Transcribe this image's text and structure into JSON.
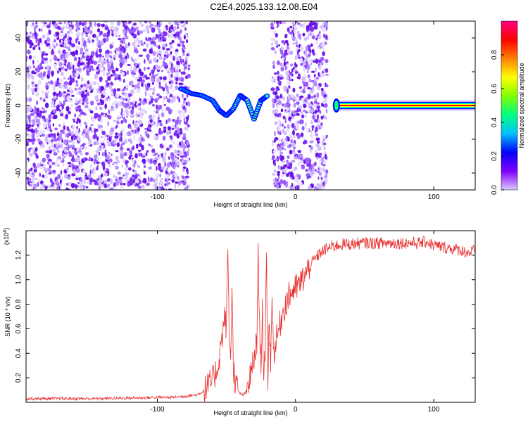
{
  "title": "C2E4.2025.133.12.08.E04",
  "chart_data": [
    {
      "type": "heatmap",
      "name": "spectrogram",
      "xlabel": "Height of straight line (km)",
      "ylabel": "Frequency (Hz)",
      "xlim": [
        -195,
        130
      ],
      "ylim": [
        -50,
        50
      ],
      "xticks": [
        -100,
        0,
        100
      ],
      "yticks": [
        -40,
        -20,
        0,
        20,
        40
      ],
      "xtick_labels": [
        "-100",
        "0",
        "100"
      ],
      "ytick_labels": [
        "-40",
        "-20",
        "0",
        "20",
        "40"
      ],
      "regions": [
        {
          "kind": "noise",
          "x_range": [
            -195,
            -77
          ],
          "f_range": [
            -50,
            50
          ]
        },
        {
          "kind": "noise",
          "x_range": [
            -17,
            23
          ],
          "f_range": [
            -50,
            50
          ]
        },
        {
          "kind": "signal_trace",
          "points": [
            [
              -83,
              10
            ],
            [
              -75,
              7
            ],
            [
              -68,
              6
            ],
            [
              -60,
              3
            ],
            [
              -55,
              -3
            ],
            [
              -50,
              -6
            ],
            [
              -45,
              -2
            ],
            [
              -40,
              6
            ],
            [
              -35,
              3
            ],
            [
              -30,
              -8
            ],
            [
              -25,
              3
            ],
            [
              -20,
              6
            ]
          ]
        },
        {
          "kind": "carrier",
          "x_range": [
            28,
            130
          ],
          "f": 0
        }
      ],
      "colorbar": {
        "label": "Normalized spectral amplitude",
        "range": [
          0,
          1
        ],
        "ticks": [
          0,
          0.2,
          0.4,
          0.6,
          0.8
        ],
        "tick_labels": [
          "0.0",
          "0.2",
          "0.4",
          "0.6",
          "0.8"
        ],
        "colormap": [
          "#dcc8ff",
          "#8000ff",
          "#0000ff",
          "#00c0ff",
          "#00ff80",
          "#80ff00",
          "#ffff00",
          "#ff8000",
          "#ff0000",
          "#ff0080"
        ]
      }
    },
    {
      "type": "line",
      "name": "snr",
      "xlabel": "Height of straight line (km)",
      "ylabel": "SNR (10 * v/v)",
      "y_multiplier": "(x10",
      "y_multiplier_exp": "4",
      "y_multiplier_close": ")",
      "xlim": [
        -195,
        130
      ],
      "ylim": [
        0,
        1.4
      ],
      "xticks": [
        -100,
        0,
        100
      ],
      "yticks": [
        0.2,
        0.4,
        0.6,
        0.8,
        1.0,
        1.2
      ],
      "xtick_labels": [
        "-100",
        "0",
        "100"
      ],
      "ytick_labels": [
        "0.2",
        "0.4",
        "0.6",
        "0.8",
        "1.0",
        "1.2"
      ],
      "color": "#e83030",
      "series": [
        {
          "name": "SNR",
          "x": [
            -195,
            -180,
            -160,
            -140,
            -120,
            -100,
            -90,
            -80,
            -72,
            -68,
            -64,
            -60,
            -56,
            -53,
            -51,
            -50,
            -49,
            -48,
            -47,
            -46,
            -45,
            -44,
            -43,
            -42,
            -40,
            -38,
            -36,
            -34,
            -32,
            -30,
            -28,
            -27,
            -26,
            -25,
            -24,
            -23,
            -22,
            -21,
            -20,
            -19,
            -18,
            -17,
            -16,
            -15,
            -14,
            -13,
            -12,
            -11,
            -10,
            -8,
            -6,
            -4,
            -2,
            0,
            2,
            4,
            6,
            8,
            10,
            12,
            15,
            18,
            22,
            26,
            30,
            35,
            40,
            50,
            60,
            70,
            80,
            90,
            95,
            100,
            105,
            110,
            115,
            120,
            125,
            130
          ],
          "y": [
            0.03,
            0.03,
            0.03,
            0.03,
            0.035,
            0.04,
            0.04,
            0.05,
            0.06,
            0.08,
            0.12,
            0.18,
            0.3,
            0.55,
            0.7,
            0.6,
            1.28,
            0.5,
            0.4,
            0.9,
            0.3,
            0.2,
            0.15,
            0.1,
            0.07,
            0.06,
            0.08,
            0.15,
            0.25,
            0.35,
            0.5,
            1.25,
            0.6,
            0.3,
            0.8,
            0.1,
            0.4,
            1.2,
            0.2,
            0.7,
            0.3,
            0.9,
            0.4,
            0.45,
            0.5,
            0.55,
            0.6,
            0.65,
            0.7,
            0.78,
            0.84,
            0.88,
            0.91,
            0.93,
            0.95,
            0.98,
            1.02,
            1.06,
            1.1,
            1.14,
            1.18,
            1.22,
            1.25,
            1.27,
            1.28,
            1.29,
            1.29,
            1.3,
            1.3,
            1.3,
            1.3,
            1.3,
            1.31,
            1.28,
            1.27,
            1.26,
            1.25,
            1.24,
            1.22,
            1.24
          ]
        }
      ]
    }
  ]
}
